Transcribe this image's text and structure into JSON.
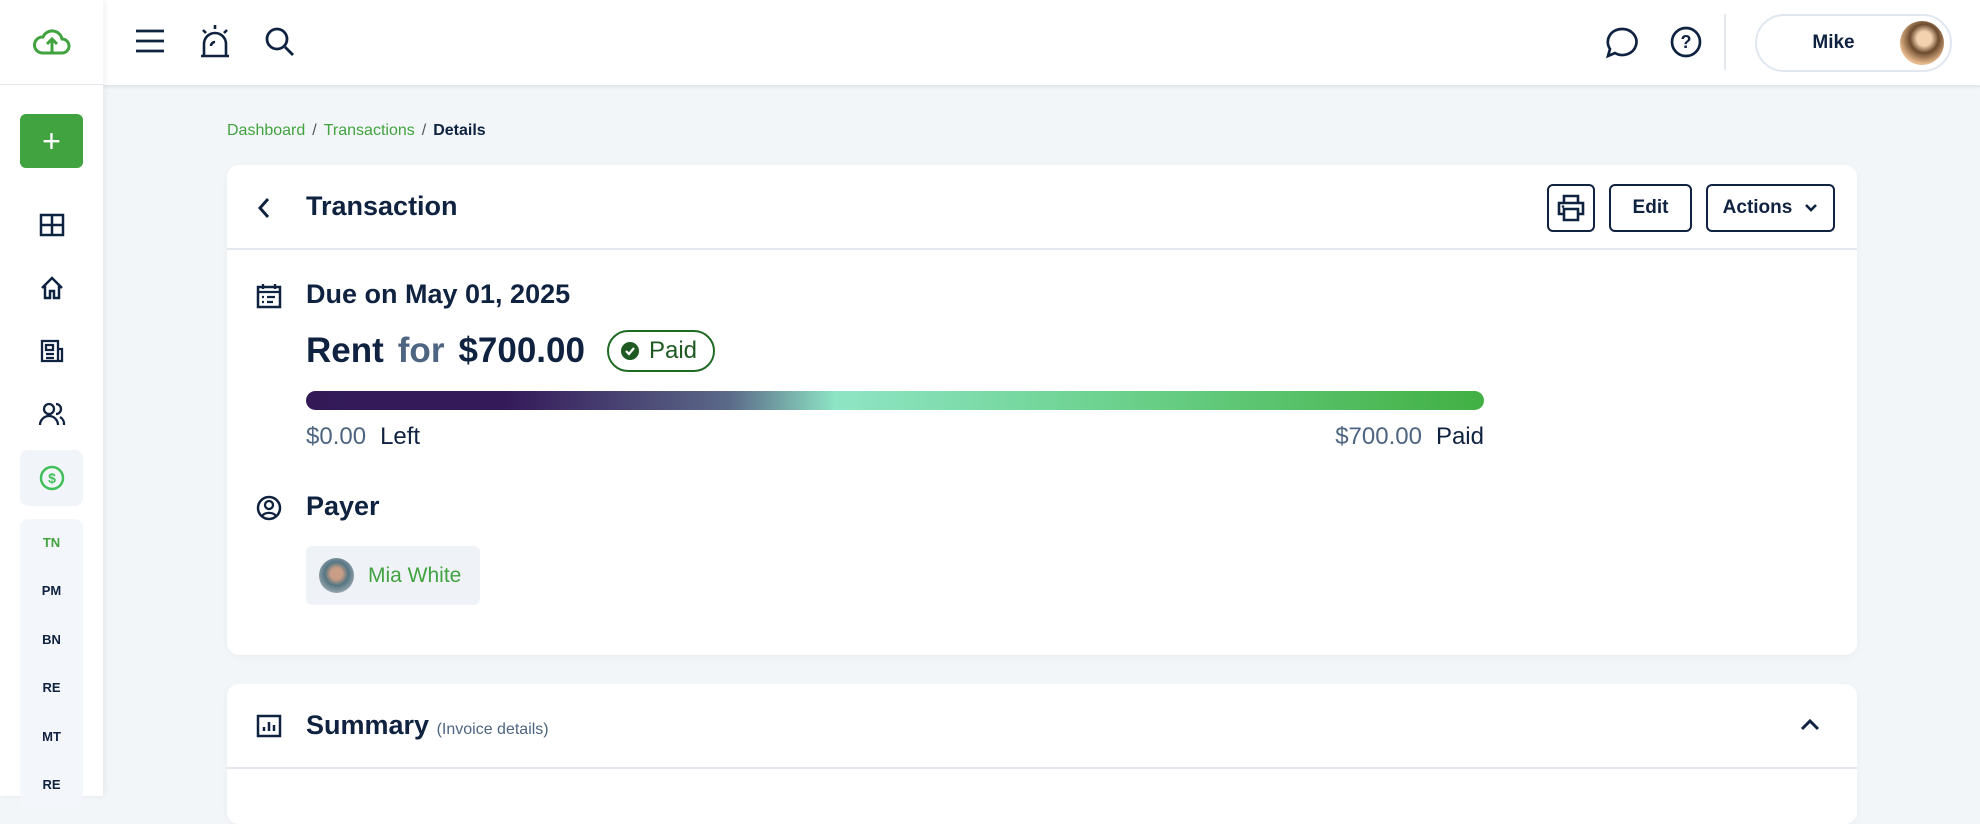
{
  "sidebar": {
    "add_label": "+",
    "items": [
      "dashboard-icon",
      "home-icon",
      "news-icon",
      "people-icon",
      "dollar-icon"
    ],
    "sub_items": [
      "TN",
      "PM",
      "BN",
      "RE",
      "MT",
      "RE"
    ]
  },
  "topbar": {
    "user_name": "Mike"
  },
  "breadcrumb": [
    "Dashboard",
    "Transactions",
    "Details"
  ],
  "transaction": {
    "title": "Transaction",
    "edit_label": "Edit",
    "actions_label": "Actions",
    "due": "Due on May 01, 2025",
    "category": "Rent",
    "for_word": "for",
    "amount": "$700.00",
    "status": "Paid",
    "progress_percent": 100,
    "left_amount": "$0.00",
    "left_label": "Left",
    "paid_amount": "$700.00",
    "paid_label": "Paid",
    "payer_heading": "Payer",
    "payer_name": "Mia White"
  },
  "summary": {
    "title": "Summary",
    "subtitle": "(Invoice details)"
  },
  "colors": {
    "accent": "#41a33f",
    "text": "#0f2240",
    "background": "#f3f6f9"
  }
}
